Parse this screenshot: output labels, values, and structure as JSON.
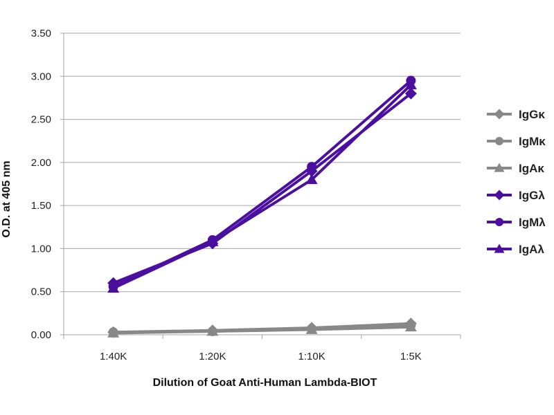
{
  "chart_data": {
    "type": "line",
    "title": "",
    "xlabel": "Dilution of Goat Anti-Human Lambda-BIOT",
    "ylabel": "O.D. at 405 nm",
    "categories": [
      "1:40K",
      "1:20K",
      "1:10K",
      "1:5K"
    ],
    "ylim": [
      0,
      3.5
    ],
    "yticks": [
      "0.00",
      "0.50",
      "1.00",
      "1.50",
      "2.00",
      "2.50",
      "3.00",
      "3.50"
    ],
    "ytick_values": [
      0,
      0.5,
      1,
      1.5,
      2,
      2.5,
      3,
      3.5
    ],
    "grid": true,
    "legend_position": "right",
    "series": [
      {
        "name": "IgGκ",
        "values": [
          0.03,
          0.05,
          0.08,
          0.13
        ],
        "color": "#888888",
        "marker": "diamond"
      },
      {
        "name": "IgMκ",
        "values": [
          0.03,
          0.04,
          0.07,
          0.11
        ],
        "color": "#888888",
        "marker": "circle"
      },
      {
        "name": "IgAκ",
        "values": [
          0.02,
          0.04,
          0.06,
          0.09
        ],
        "color": "#888888",
        "marker": "triangle"
      },
      {
        "name": "IgGλ",
        "values": [
          0.6,
          1.06,
          1.9,
          2.8
        ],
        "color": "#4B0FA0",
        "marker": "diamond"
      },
      {
        "name": "IgMλ",
        "values": [
          0.56,
          1.1,
          1.95,
          2.95
        ],
        "color": "#4B0FA0",
        "marker": "circle"
      },
      {
        "name": "IgAλ",
        "values": [
          0.54,
          1.08,
          1.8,
          2.9
        ],
        "color": "#4B0FA0",
        "marker": "triangle"
      }
    ]
  }
}
